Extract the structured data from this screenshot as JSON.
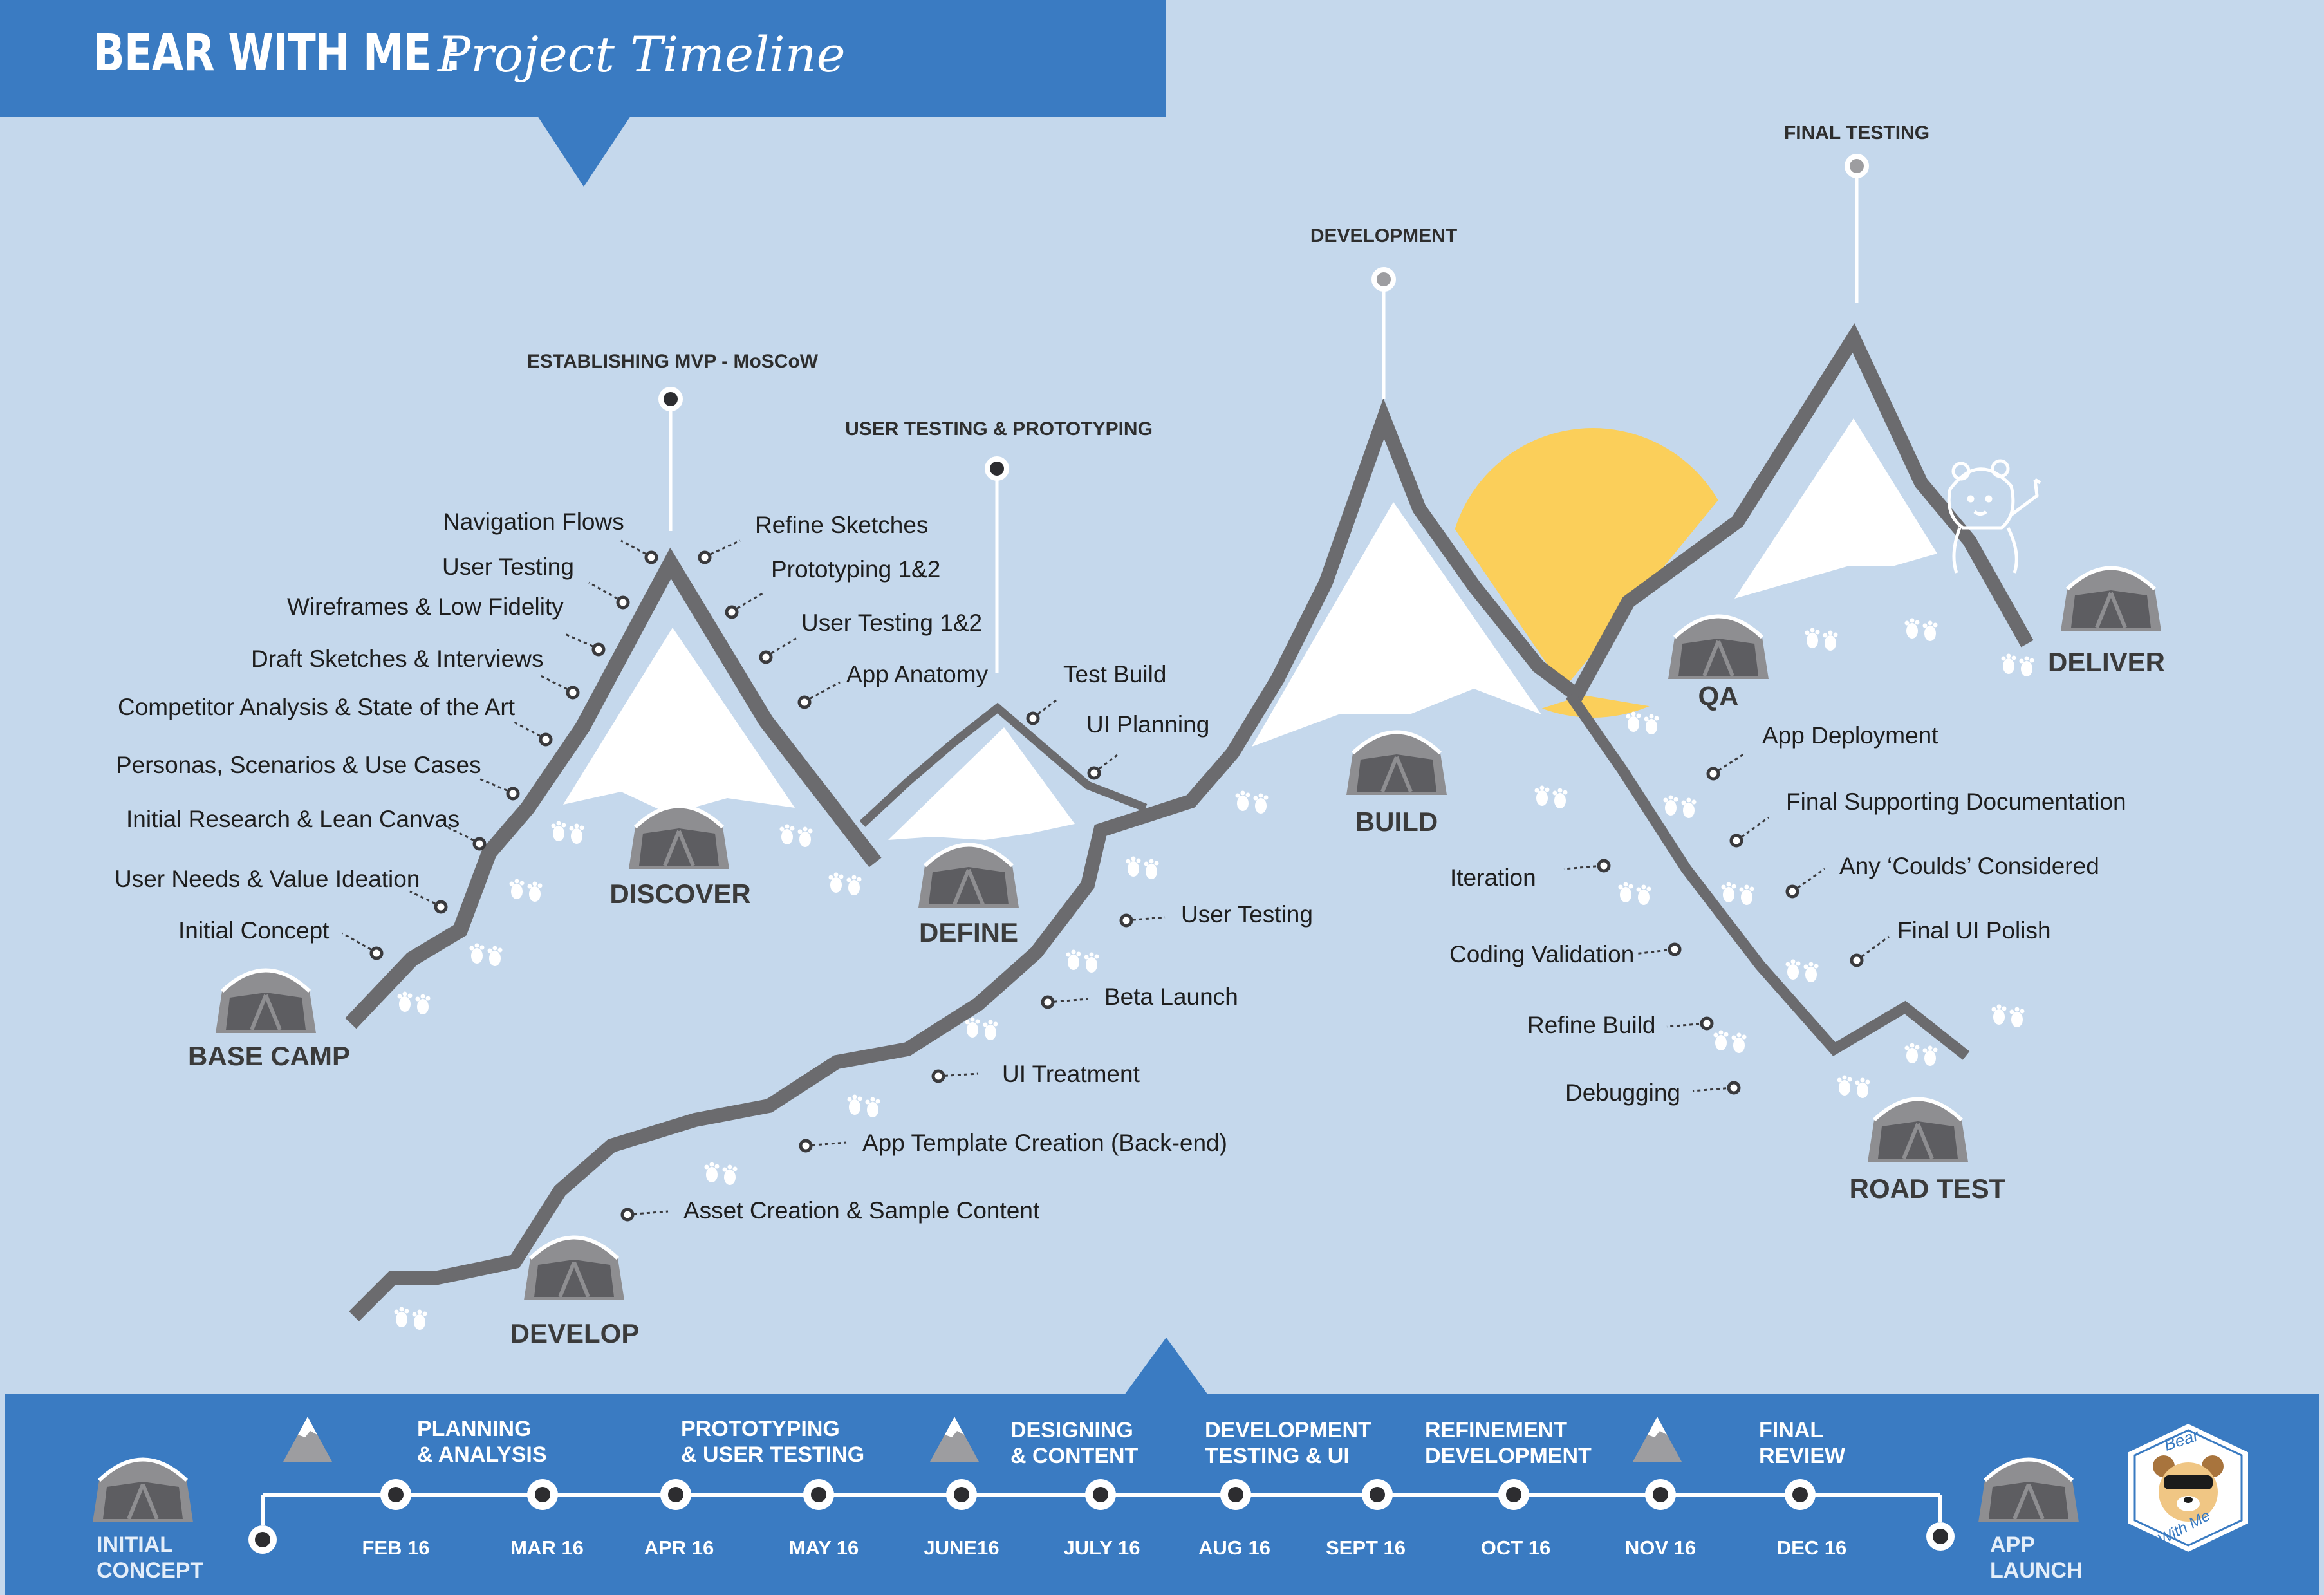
{
  "header": {
    "brand": "BEAR WITH ME :",
    "subtitle": "Project Timeline"
  },
  "milestones": [
    "ESTABLISHING MVP - MoSCoW",
    "USER TESTING & PROTOTYPING",
    "DEVELOPMENT",
    "FINAL TESTING"
  ],
  "camps": [
    "BASE CAMP",
    "DISCOVER",
    "DEFINE",
    "DEVELOP",
    "BUILD",
    "QA",
    "ROAD TEST",
    "DELIVER"
  ],
  "tasks": [
    "Navigation Flows",
    "User Testing",
    "Wireframes & Low Fidelity",
    "Draft Sketches & Interviews",
    "Competitor Analysis & State of the Art",
    "Personas, Scenarios & Use Cases",
    "Initial Research & Lean Canvas",
    "User Needs & Value Ideation",
    "Initial Concept",
    "Refine Sketches",
    "Prototyping 1&2",
    "User Testing 1&2",
    "App Anatomy",
    "Test Build",
    "UI Planning",
    "User Testing",
    "Beta Launch",
    "UI Treatment",
    "App Template Creation (Back-end)",
    "Asset Creation  & Sample Content",
    "Iteration",
    "Coding Validation",
    "Refine Build",
    "Debugging",
    "App Deployment",
    "Final Supporting Documentation",
    "Any ‘Coulds’ Considered",
    "Final UI Polish"
  ],
  "timeline": {
    "start": [
      "INITIAL",
      "CONCEPT"
    ],
    "end": [
      "APP",
      "LAUNCH"
    ],
    "phases": [
      [
        "PLANNING",
        "& ANALYSIS"
      ],
      [
        "PROTOTYPING",
        "& USER TESTING"
      ],
      [
        "DESIGNING",
        "& CONTENT"
      ],
      [
        "DEVELOPMENT",
        "TESTING & UI"
      ],
      [
        "REFINEMENT",
        "DEVELOPMENT"
      ],
      [
        "FINAL",
        "REVIEW"
      ]
    ],
    "dates": [
      "FEB 16",
      "MAR 16",
      "APR 16",
      "MAY 16",
      "JUNE16",
      "JULY 16",
      "AUG 16",
      "SEPT 16",
      "OCT 16",
      "NOV 16",
      "DEC 16"
    ]
  },
  "logo": {
    "line1": "Bear",
    "line2": "With Me"
  },
  "colors": {
    "sky": "#c5d8ec",
    "brand_blue": "#3a7bc2",
    "trail": "#6b6b6e",
    "sun": "#fbcf5a",
    "snow": "#ffffff",
    "tent": "#8e8e91"
  }
}
